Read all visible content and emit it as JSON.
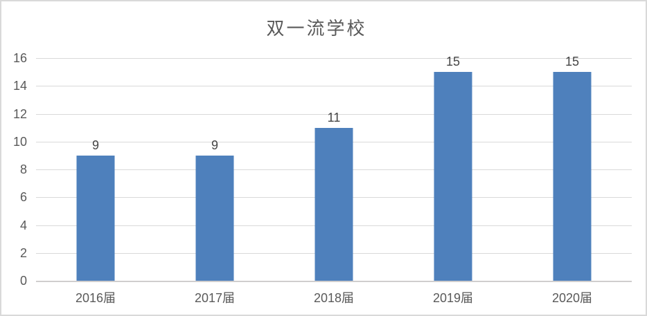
{
  "chart_data": {
    "type": "bar",
    "title": "双一流学校",
    "categories": [
      "2016届",
      "2017届",
      "2018届",
      "2019届",
      "2020届"
    ],
    "values": [
      9,
      9,
      11,
      15,
      15
    ],
    "data_labels": [
      "9",
      "9",
      "11",
      "15",
      "15"
    ],
    "xlabel": "",
    "ylabel": "",
    "ylim": [
      0,
      16
    ],
    "ytick_step": 2,
    "yticks": [
      0,
      2,
      4,
      6,
      8,
      10,
      12,
      14,
      16
    ],
    "grid": true,
    "legend": false,
    "colors": {
      "bar": "#4e80bc",
      "gridline": "#d9d9d9",
      "axis_line": "#d0cece",
      "tick_label": "#595959",
      "data_label": "#444444",
      "title": "#595959",
      "border": "#d9d9d9",
      "background": "#ffffff"
    }
  }
}
